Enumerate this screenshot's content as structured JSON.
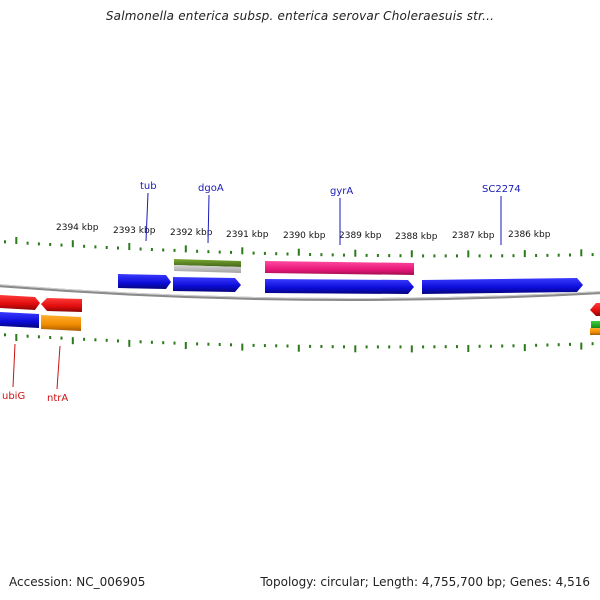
{
  "title": "Salmonella enterica subsp. enterica serovar Choleraesuis str...",
  "footer": {
    "accession": "Accession: NC_006905",
    "summary": "Topology: circular; Length: 4,755,700 bp; Genes: 4,516"
  },
  "colors": {
    "forward_label": "#1a1ab8",
    "reverse_label": "#cc1111",
    "backbone": "#888888",
    "tick": "#2a7a1a",
    "cds_blue": "#1010e0",
    "red": "#e81010",
    "orange": "#f08c00",
    "pink": "#e8187a",
    "olive": "#5e8a1a",
    "gray": "#b8b8b8",
    "green": "#1aa81a"
  },
  "kbp_labels": [
    "2394 kbp",
    "2393 kbp",
    "2392 kbp",
    "2391 kbp",
    "2390 kbp",
    "2389 kbp",
    "2388 kbp",
    "2387 kbp",
    "2386 kbp"
  ],
  "gene_labels": {
    "forward": [
      "tub",
      "dgoA",
      "gyrA",
      "SC2274"
    ],
    "reverse": [
      "ubiG",
      "ntrA"
    ]
  },
  "features": [
    {
      "name": "feature-tub",
      "color": "cds_blue",
      "strand": "forward",
      "shape": "arrow-right"
    },
    {
      "name": "feature-dgoA",
      "color": "cds_blue",
      "strand": "forward",
      "shape": "arrow-right"
    },
    {
      "name": "feature-dgoA-olive",
      "color": "olive",
      "strand": "forward",
      "shape": "bar"
    },
    {
      "name": "feature-dgoA-gray",
      "color": "gray",
      "strand": "forward",
      "shape": "bar"
    },
    {
      "name": "feature-gyrA-pink",
      "color": "pink",
      "strand": "forward",
      "shape": "bar"
    },
    {
      "name": "feature-gyrA",
      "color": "cds_blue",
      "strand": "forward",
      "shape": "arrow-right"
    },
    {
      "name": "feature-SC2274",
      "color": "cds_blue",
      "strand": "forward",
      "shape": "arrow-right"
    },
    {
      "name": "feature-ubiG-red",
      "color": "red",
      "strand": "reverse",
      "shape": "arrow-right"
    },
    {
      "name": "feature-ubiG-blue",
      "color": "cds_blue",
      "strand": "reverse",
      "shape": "bar"
    },
    {
      "name": "feature-ntrA-red",
      "color": "red",
      "strand": "reverse",
      "shape": "arrow-left"
    },
    {
      "name": "feature-ntrA-orange",
      "color": "orange",
      "strand": "reverse",
      "shape": "bar"
    },
    {
      "name": "feature-edge-red",
      "color": "red",
      "strand": "reverse",
      "shape": "arrow-left"
    },
    {
      "name": "feature-edge-green",
      "color": "green",
      "strand": "reverse",
      "shape": "bar"
    },
    {
      "name": "feature-edge-orange",
      "color": "orange",
      "strand": "reverse",
      "shape": "bar"
    }
  ]
}
